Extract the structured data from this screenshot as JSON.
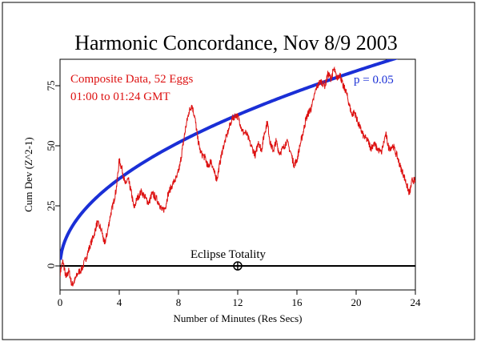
{
  "chart_data": {
    "type": "line",
    "title": "Harmonic Concordance, Nov 8/9 2003",
    "xlabel": "Number of Minutes (Res Secs)",
    "ylabel": "Cum Dev (Z^2-1)",
    "xlim": [
      0,
      24
    ],
    "ylim": [
      -10,
      86
    ],
    "x_ticks": [
      "0",
      "4",
      "8",
      "12",
      "16",
      "20",
      "24"
    ],
    "y_ticks": [
      "0",
      "25",
      "50",
      "75"
    ],
    "grid": false,
    "annotations": {
      "data_line1": "Composite Data, 52 Eggs",
      "data_line2": "01:00 to 01:24 GMT",
      "probability": "p = 0.05",
      "event_label": "Eclipse Totality",
      "event_x": 12
    },
    "colors": {
      "data": "#dd1111",
      "envelope": "#1a2fd6",
      "axes": "#000000"
    },
    "series": [
      {
        "values": [
          [
            0,
            -3
          ],
          [
            0.2,
            2
          ],
          [
            0.4,
            -5
          ],
          [
            0.6,
            -2
          ],
          [
            0.8,
            -8
          ],
          [
            1.0,
            -6
          ],
          [
            1.2,
            -3
          ],
          [
            1.5,
            -1
          ],
          [
            1.8,
            4
          ],
          [
            2.0,
            8
          ],
          [
            2.3,
            13
          ],
          [
            2.5,
            18
          ],
          [
            2.8,
            15
          ],
          [
            3.0,
            9
          ],
          [
            3.2,
            14
          ],
          [
            3.4,
            21
          ],
          [
            3.6,
            26
          ],
          [
            3.8,
            32
          ],
          [
            4.0,
            44
          ],
          [
            4.2,
            40
          ],
          [
            4.4,
            34
          ],
          [
            4.6,
            36
          ],
          [
            4.8,
            31
          ],
          [
            5.0,
            24
          ],
          [
            5.2,
            28
          ],
          [
            5.5,
            31
          ],
          [
            5.8,
            28
          ],
          [
            6.0,
            26
          ],
          [
            6.2,
            30
          ],
          [
            6.4,
            29
          ],
          [
            6.7,
            26
          ],
          [
            6.9,
            23
          ],
          [
            7.1,
            24
          ],
          [
            7.3,
            30
          ],
          [
            7.6,
            34
          ],
          [
            7.9,
            37
          ],
          [
            8.1,
            42
          ],
          [
            8.3,
            50
          ],
          [
            8.5,
            58
          ],
          [
            8.7,
            64
          ],
          [
            8.9,
            67
          ],
          [
            9.1,
            62
          ],
          [
            9.3,
            53
          ],
          [
            9.5,
            47
          ],
          [
            9.8,
            45
          ],
          [
            10.0,
            41
          ],
          [
            10.2,
            44
          ],
          [
            10.4,
            39
          ],
          [
            10.6,
            36
          ],
          [
            10.8,
            43
          ],
          [
            11.0,
            49
          ],
          [
            11.3,
            55
          ],
          [
            11.6,
            61
          ],
          [
            11.9,
            63
          ],
          [
            12.1,
            61
          ],
          [
            12.3,
            56
          ],
          [
            12.6,
            55
          ],
          [
            12.9,
            50
          ],
          [
            13.2,
            46
          ],
          [
            13.4,
            52
          ],
          [
            13.6,
            48
          ],
          [
            13.8,
            55
          ],
          [
            14.0,
            60
          ],
          [
            14.2,
            51
          ],
          [
            14.4,
            48
          ],
          [
            14.6,
            52
          ],
          [
            14.8,
            47
          ],
          [
            15.1,
            49
          ],
          [
            15.3,
            52
          ],
          [
            15.6,
            47
          ],
          [
            15.8,
            42
          ],
          [
            16.0,
            44
          ],
          [
            16.2,
            50
          ],
          [
            16.4,
            55
          ],
          [
            16.6,
            61
          ],
          [
            16.8,
            64
          ],
          [
            17.0,
            66
          ],
          [
            17.3,
            74
          ],
          [
            17.6,
            77
          ],
          [
            17.9,
            75
          ],
          [
            18.1,
            80
          ],
          [
            18.3,
            78
          ],
          [
            18.5,
            82
          ],
          [
            18.7,
            78
          ],
          [
            18.9,
            80
          ],
          [
            19.1,
            75
          ],
          [
            19.3,
            73
          ],
          [
            19.5,
            68
          ],
          [
            19.7,
            63
          ],
          [
            19.9,
            64
          ],
          [
            20.1,
            60
          ],
          [
            20.3,
            57
          ],
          [
            20.5,
            54
          ],
          [
            20.8,
            52
          ],
          [
            21.0,
            49
          ],
          [
            21.2,
            51
          ],
          [
            21.4,
            49
          ],
          [
            21.7,
            47
          ],
          [
            22.0,
            55
          ],
          [
            22.2,
            49
          ],
          [
            22.5,
            50
          ],
          [
            22.8,
            45
          ],
          [
            23.0,
            41
          ],
          [
            23.2,
            38
          ],
          [
            23.4,
            34
          ],
          [
            23.6,
            30
          ],
          [
            23.8,
            36
          ],
          [
            24.0,
            35
          ]
        ]
      }
    ]
  }
}
